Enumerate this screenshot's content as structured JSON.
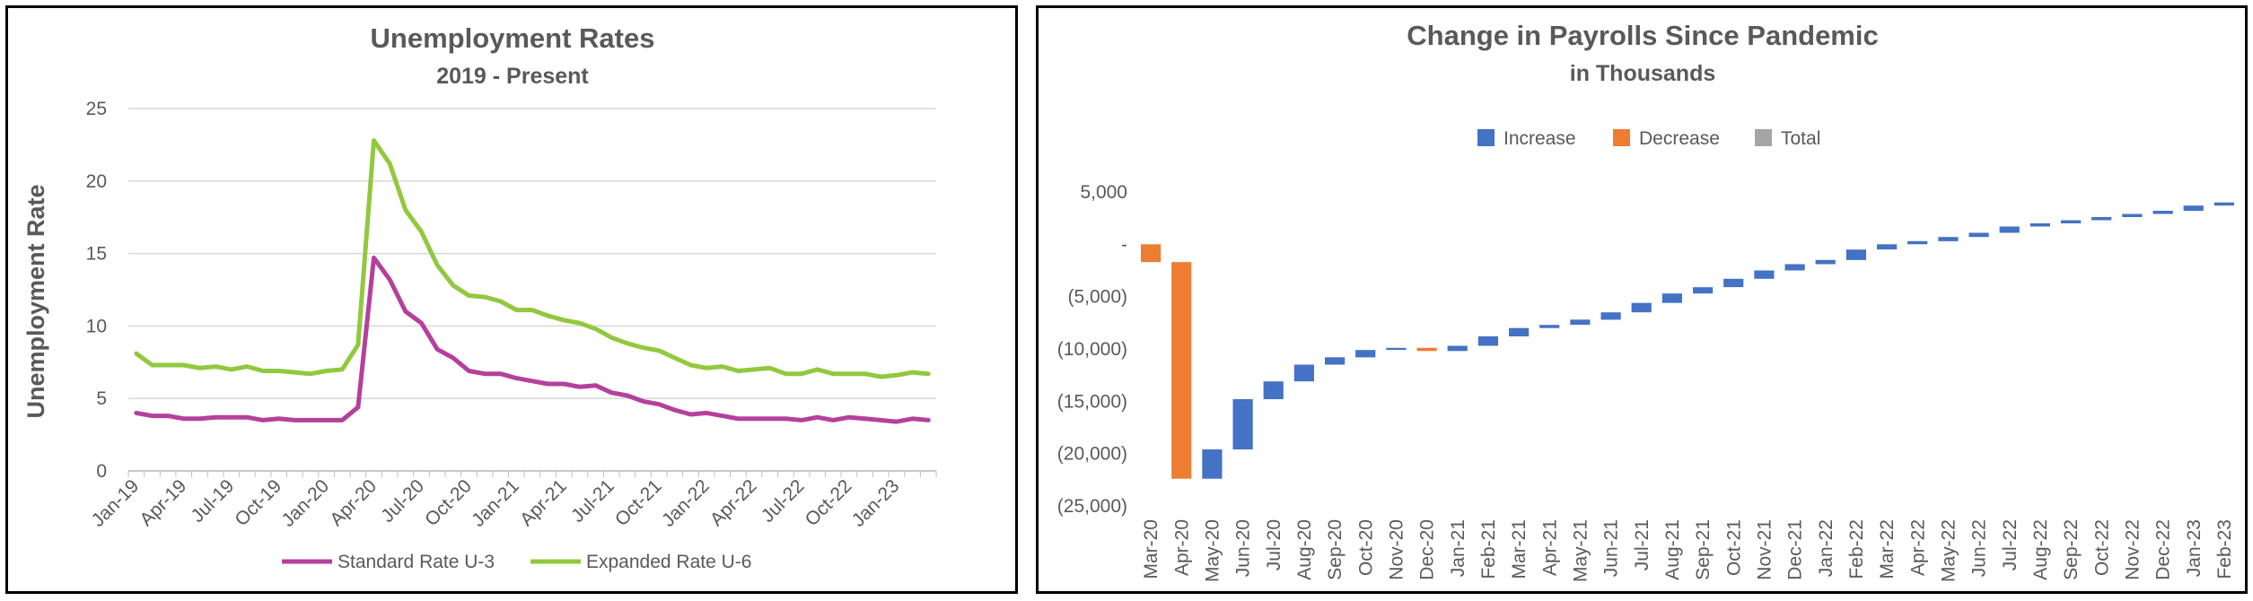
{
  "chart_data": [
    {
      "type": "line",
      "title": "Unemployment Rates",
      "subtitle": "2019 - Present",
      "ylabel": "Unemployment Rate",
      "xlabel": "",
      "ylim": [
        0,
        25
      ],
      "yticks": [
        0,
        5,
        10,
        15,
        20,
        25
      ],
      "grid": true,
      "legend": "bottom",
      "x_tick_labels": [
        "Jan-19",
        "Apr-19",
        "Jul-19",
        "Oct-19",
        "Jan-20",
        "Apr-20",
        "Jul-20",
        "Oct-20",
        "Jan-21",
        "Apr-21",
        "Jul-21",
        "Oct-21",
        "Jan-22",
        "Apr-22",
        "Jul-22",
        "Oct-22",
        "Jan-23"
      ],
      "x_count": 51,
      "series": [
        {
          "name": "Standard Rate U-3",
          "color": "#b5409c",
          "values": [
            4.0,
            3.8,
            3.8,
            3.6,
            3.6,
            3.7,
            3.7,
            3.7,
            3.5,
            3.6,
            3.5,
            3.5,
            3.5,
            3.5,
            4.4,
            14.7,
            13.2,
            11.0,
            10.2,
            8.4,
            7.8,
            6.9,
            6.7,
            6.7,
            6.4,
            6.2,
            6.0,
            6.0,
            5.8,
            5.9,
            5.4,
            5.2,
            4.8,
            4.6,
            4.2,
            3.9,
            4.0,
            3.8,
            3.6,
            3.6,
            3.6,
            3.6,
            3.5,
            3.7,
            3.5,
            3.7,
            3.6,
            3.5,
            3.4,
            3.6,
            3.5
          ]
        },
        {
          "name": "Expanded Rate U-6",
          "color": "#92c83e",
          "values": [
            8.1,
            7.3,
            7.3,
            7.3,
            7.1,
            7.2,
            7.0,
            7.2,
            6.9,
            6.9,
            6.8,
            6.7,
            6.9,
            7.0,
            8.7,
            22.8,
            21.2,
            18.0,
            16.5,
            14.2,
            12.8,
            12.1,
            12.0,
            11.7,
            11.1,
            11.1,
            10.7,
            10.4,
            10.2,
            9.8,
            9.2,
            8.8,
            8.5,
            8.3,
            7.8,
            7.3,
            7.1,
            7.2,
            6.9,
            7.0,
            7.1,
            6.7,
            6.7,
            7.0,
            6.7,
            6.7,
            6.7,
            6.5,
            6.6,
            6.8,
            6.7
          ]
        }
      ]
    },
    {
      "type": "bar",
      "subtype": "waterfall",
      "title": "Change in Payrolls Since Pandemic",
      "subtitle": "in Thousands",
      "xlabel": "",
      "ylabel": "",
      "ylim": [
        -25000,
        5000
      ],
      "yticks": [
        5000,
        0,
        -5000,
        -10000,
        -15000,
        -20000,
        -25000
      ],
      "ytick_labels": [
        "5,000",
        "-",
        "(5,000)",
        "(10,000)",
        "(15,000)",
        "(20,000)",
        "(25,000)"
      ],
      "grid": false,
      "legend": "top",
      "legend_entries": [
        {
          "name": "Increase",
          "color": "#4472c4"
        },
        {
          "name": "Decrease",
          "color": "#ed7d31"
        },
        {
          "name": "Total",
          "color": "#a5a5a5"
        }
      ],
      "categories": [
        "Mar-20",
        "Apr-20",
        "May-20",
        "Jun-20",
        "Jul-20",
        "Aug-20",
        "Sep-20",
        "Oct-20",
        "Nov-20",
        "Dec-20",
        "Jan-21",
        "Feb-21",
        "Mar-21",
        "Apr-21",
        "May-21",
        "Jun-21",
        "Jul-21",
        "Aug-21",
        "Sep-21",
        "Oct-21",
        "Nov-21",
        "Dec-21",
        "Jan-22",
        "Feb-22",
        "Mar-22",
        "Apr-22",
        "May-22",
        "Jun-22",
        "Jul-22",
        "Aug-22",
        "Sep-22",
        "Oct-22",
        "Nov-22",
        "Dec-22",
        "Jan-23",
        "Feb-23"
      ],
      "values": [
        -1700,
        -20700,
        2800,
        4800,
        1700,
        1600,
        700,
        700,
        200,
        -300,
        500,
        900,
        800,
        300,
        500,
        700,
        900,
        900,
        600,
        800,
        800,
        600,
        400,
        1000,
        500,
        300,
        400,
        400,
        600,
        300,
        300,
        300,
        300,
        300,
        500,
        300
      ]
    }
  ]
}
